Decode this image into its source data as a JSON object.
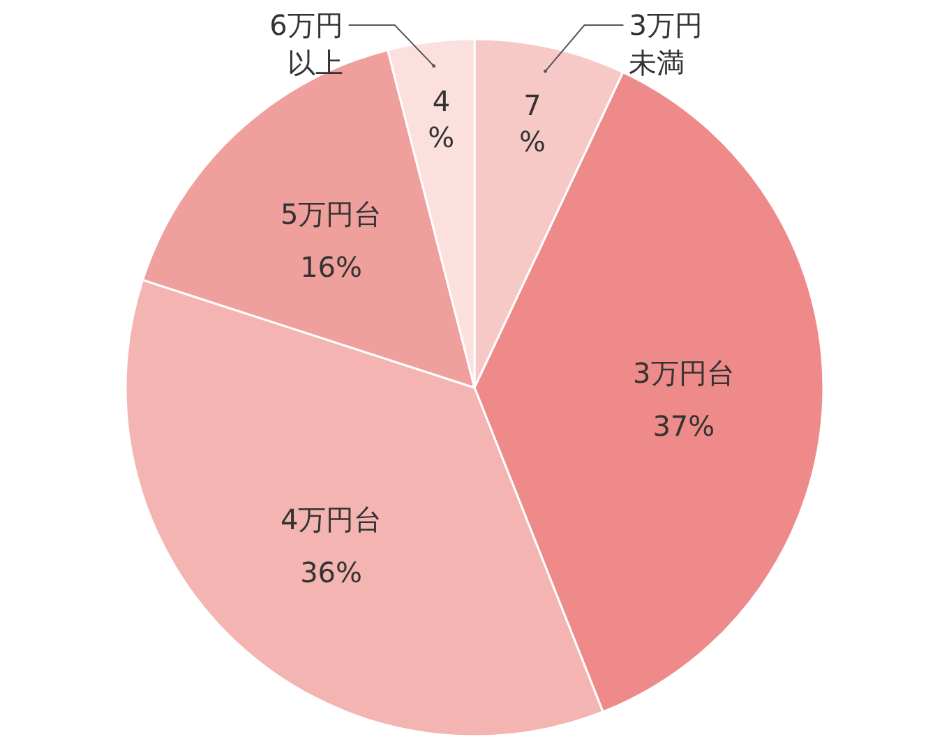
{
  "chart_data": {
    "type": "pie",
    "categories": [
      "3万円未満",
      "3万円台",
      "4万円台",
      "5万円台",
      "6万円以上"
    ],
    "values": [
      7,
      37,
      36,
      16,
      4
    ],
    "value_labels": [
      "7%",
      "37%",
      "36%",
      "16%",
      "4%"
    ],
    "colors": [
      "#f7c9c6",
      "#ef8a8a",
      "#f4b5b2",
      "#f0a09c",
      "#fbe0de"
    ]
  }
}
